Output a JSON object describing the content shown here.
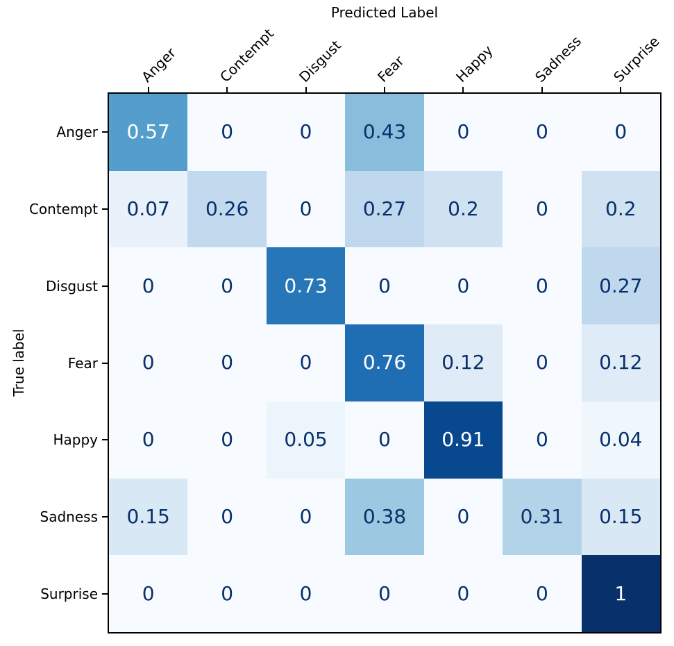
{
  "chart_data": {
    "type": "heatmap",
    "title": "",
    "xlabel": "Predicted Label",
    "ylabel": "True label",
    "categories": [
      "Anger",
      "Contempt",
      "Disgust",
      "Fear",
      "Happy",
      "Sadness",
      "Surprise"
    ],
    "row_labels": [
      "Anger",
      "Contempt",
      "Disgust",
      "Fear",
      "Happy",
      "Sadness",
      "Surprise"
    ],
    "matrix": [
      [
        0.57,
        0,
        0,
        0.43,
        0,
        0,
        0
      ],
      [
        0.07,
        0.26,
        0,
        0.27,
        0.2,
        0,
        0.2
      ],
      [
        0,
        0,
        0.73,
        0,
        0,
        0,
        0.27
      ],
      [
        0,
        0,
        0,
        0.76,
        0.12,
        0,
        0.12
      ],
      [
        0,
        0,
        0.05,
        0,
        0.91,
        0,
        0.04
      ],
      [
        0.15,
        0,
        0,
        0.38,
        0,
        0.31,
        0.15
      ],
      [
        0,
        0,
        0,
        0,
        0,
        0,
        1
      ]
    ],
    "value_range": [
      0,
      1
    ],
    "grid": false,
    "legend": "none",
    "colormap": {
      "name": "Blues",
      "anchors": [
        {
          "pos": 0.0,
          "color": "#f7fbff"
        },
        {
          "pos": 0.125,
          "color": "#deebf7"
        },
        {
          "pos": 0.25,
          "color": "#c6dbef"
        },
        {
          "pos": 0.375,
          "color": "#9ecae1"
        },
        {
          "pos": 0.5,
          "color": "#6baed6"
        },
        {
          "pos": 0.625,
          "color": "#4292c6"
        },
        {
          "pos": 0.75,
          "color": "#2171b5"
        },
        {
          "pos": 0.875,
          "color": "#08519c"
        },
        {
          "pos": 1.0,
          "color": "#08306b"
        }
      ]
    },
    "cell_text": {
      "threshold": 0.5,
      "above_color": "#ffffff",
      "below_color": "#08306b"
    },
    "axis_color": "#000000"
  }
}
